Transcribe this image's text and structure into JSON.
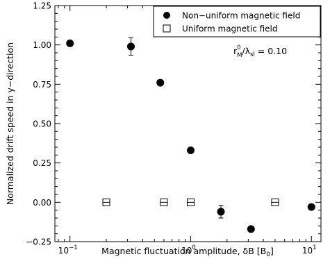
{
  "chart_data": {
    "type": "scatter",
    "title": "",
    "xlabel": "Magnetic fluctuation amplitude, δB [B",
    "xlabel_sub": "0",
    "xlabel_close": "]",
    "ylabel": "Normalized drift speed in y−direction",
    "xscale": "log",
    "xlim": [
      0.075,
      12
    ],
    "ylim": [
      -0.25,
      1.25
    ],
    "x_ticks": [
      {
        "value": 0.1,
        "base": "10",
        "exp": "−1"
      },
      {
        "value": 1,
        "base": "10",
        "exp": "0"
      },
      {
        "value": 10,
        "base": "10",
        "exp": "1"
      }
    ],
    "y_ticks": [
      {
        "value": -0.25,
        "label": "−0.25"
      },
      {
        "value": 0.0,
        "label": "0.00"
      },
      {
        "value": 0.25,
        "label": "0.25"
      },
      {
        "value": 0.5,
        "label": "0.50"
      },
      {
        "value": 0.75,
        "label": "0.75"
      },
      {
        "value": 1.0,
        "label": "1.00"
      },
      {
        "value": 1.25,
        "label": "1.25"
      }
    ],
    "legend_position": "top-right",
    "series": [
      {
        "name": "Non−uniform magnetic field",
        "marker": "filled-circle",
        "color": "#000000",
        "points": [
          {
            "x": 0.1,
            "y": 1.01,
            "err": 0.0
          },
          {
            "x": 0.32,
            "y": 0.99,
            "err": 0.055
          },
          {
            "x": 0.56,
            "y": 0.76,
            "err": 0.0
          },
          {
            "x": 1.0,
            "y": 0.33,
            "err": 0.0
          },
          {
            "x": 1.78,
            "y": -0.06,
            "err": 0.04
          },
          {
            "x": 3.16,
            "y": -0.17,
            "err": 0.015
          },
          {
            "x": 10.0,
            "y": -0.03,
            "err": 0.0
          }
        ]
      },
      {
        "name": "Uniform magnetic field",
        "marker": "open-square",
        "color": "#000000",
        "points": [
          {
            "x": 0.2,
            "y": 0.0,
            "err": 0.0
          },
          {
            "x": 0.6,
            "y": 0.0,
            "err": 0.0
          },
          {
            "x": 1.0,
            "y": 0.0,
            "err": 0.0
          },
          {
            "x": 5.0,
            "y": 0.0,
            "err": 0.0
          }
        ]
      }
    ],
    "annotation": {
      "r": "r",
      "r_sup": "0",
      "r_sub": "M",
      "slash": "/λ",
      "lambda_sub": "sl",
      "equals": " = 0.10"
    }
  }
}
